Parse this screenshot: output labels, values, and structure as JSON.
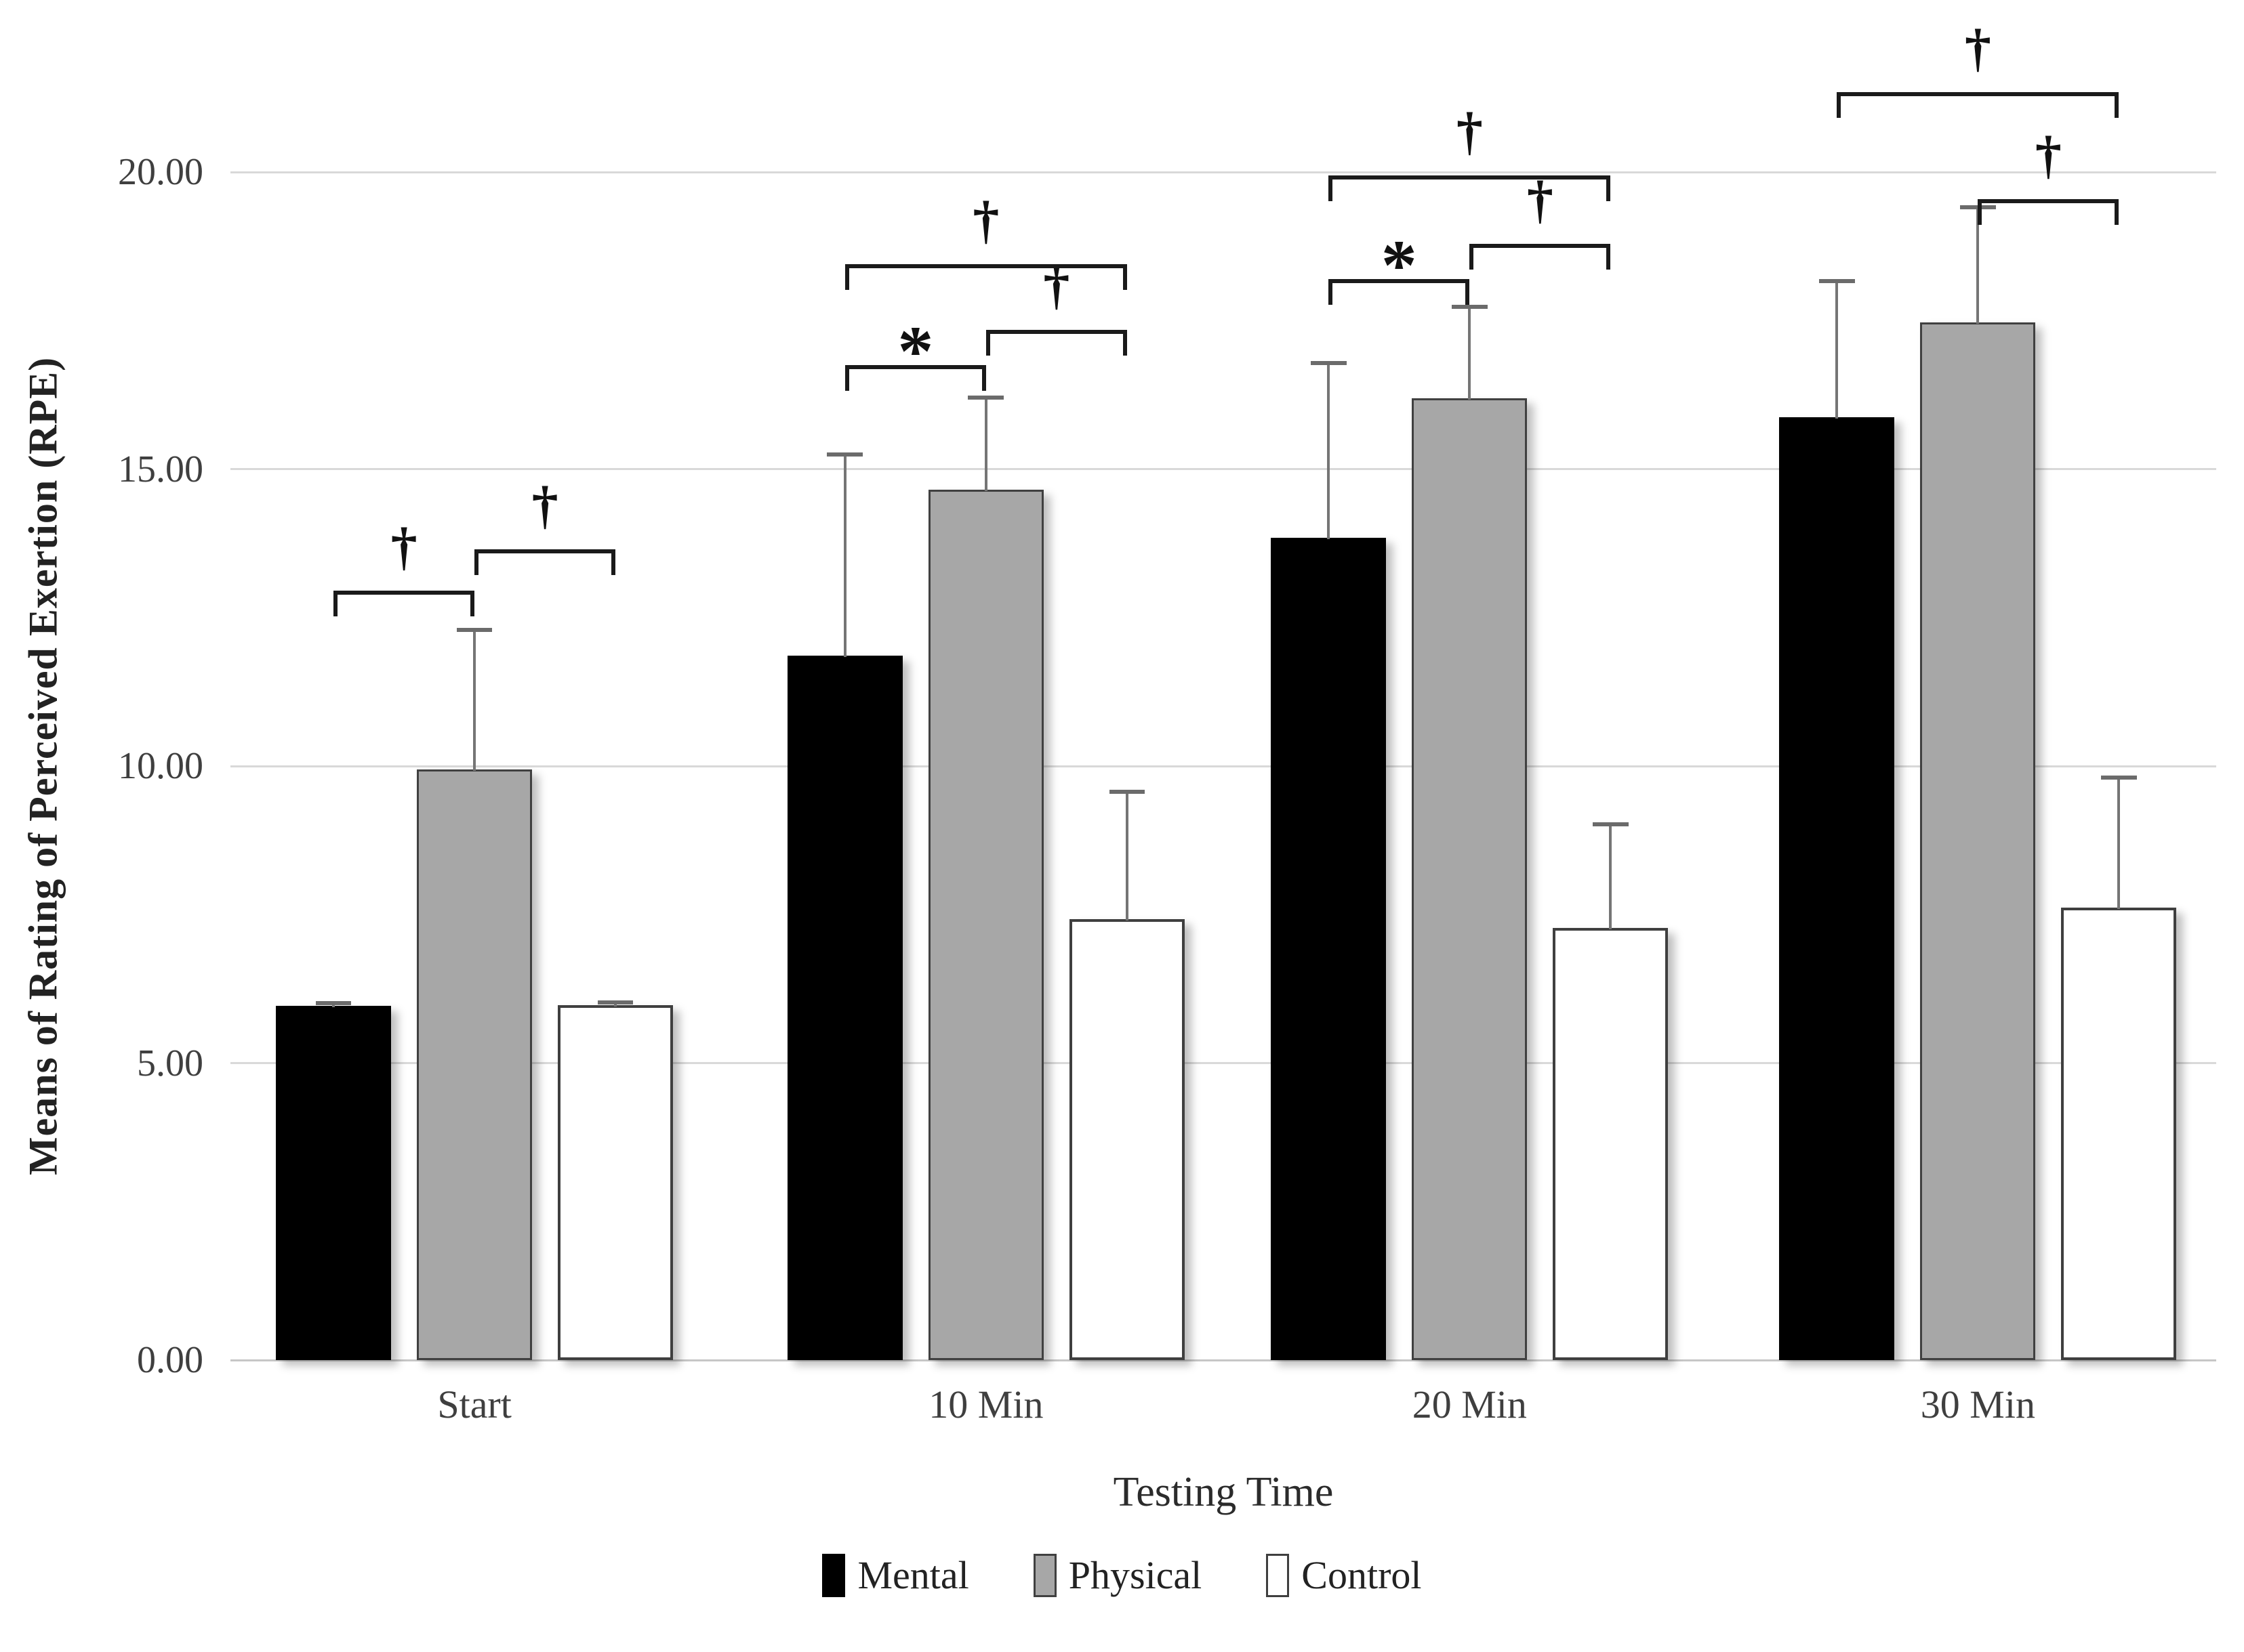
{
  "figure": {
    "background": "#ffffff"
  },
  "chart_data": {
    "type": "bar",
    "title": "",
    "xlabel": "Testing Time",
    "ylabel": "Means of Rating of Perceived Exertion (RPE)",
    "categories": [
      "Start",
      "10 Min",
      "20 Min",
      "30 Min"
    ],
    "series": [
      {
        "name": "Mental",
        "fill": "#000000",
        "border": "#000000",
        "border_width": 0,
        "values": [
          5.97,
          11.86,
          13.84,
          15.87
        ],
        "errors_up": [
          0.1,
          3.45,
          3.0,
          2.35
        ]
      },
      {
        "name": "Physical",
        "fill": "#a7a7a7",
        "border": "#404040",
        "border_width": 3,
        "values": [
          9.95,
          14.66,
          16.19,
          17.47
        ],
        "errors_up": [
          2.4,
          1.6,
          1.6,
          2.0
        ]
      },
      {
        "name": "Control",
        "fill": "#ffffff",
        "border": "#3f3f3f",
        "border_width": 4,
        "values": [
          5.98,
          7.42,
          7.28,
          7.62
        ],
        "errors_up": [
          0.1,
          2.2,
          1.8,
          2.25
        ]
      }
    ],
    "ylim": [
      0,
      22.9
    ],
    "yticks": [
      {
        "value": 0,
        "label": "0.00"
      },
      {
        "value": 5,
        "label": "5.00"
      },
      {
        "value": 10,
        "label": "10.00"
      },
      {
        "value": 15,
        "label": "15.00"
      },
      {
        "value": 20,
        "label": "20.00"
      }
    ],
    "grid": "horizontal",
    "legend_position": "bottom",
    "legend_labels": [
      "Mental",
      "Physical",
      "Control"
    ],
    "significance_brackets": [
      {
        "group": 0,
        "from": "Mental",
        "to": "Physical",
        "y": 12.95,
        "label": "†"
      },
      {
        "group": 0,
        "from": "Physical",
        "to": "Control",
        "y": 13.65,
        "label": "†"
      },
      {
        "group": 1,
        "from": "Mental",
        "to": "Physical",
        "y": 16.75,
        "label": "*"
      },
      {
        "group": 1,
        "from": "Physical",
        "to": "Control",
        "y": 17.35,
        "label": "†"
      },
      {
        "group": 1,
        "from": "Mental",
        "to": "Control",
        "y": 18.45,
        "label": "†"
      },
      {
        "group": 2,
        "from": "Mental",
        "to": "Physical",
        "y": 18.2,
        "label": "*"
      },
      {
        "group": 2,
        "from": "Physical",
        "to": "Control",
        "y": 18.8,
        "label": "†"
      },
      {
        "group": 2,
        "from": "Mental",
        "to": "Control",
        "y": 19.95,
        "label": "†"
      },
      {
        "group": 3,
        "from": "Physical",
        "to": "Control",
        "y": 19.55,
        "label": "†"
      },
      {
        "group": 3,
        "from": "Mental",
        "to": "Control",
        "y": 21.35,
        "label": "†"
      }
    ],
    "colors": {
      "gridline": "#d9d9d9",
      "baseline": "#c6c6c6",
      "error_bar": "#757575",
      "bracket": "#1a1a1a",
      "sig_text": "#111111",
      "tick_text": "#3f3f3f",
      "axis_title_text": "#222222"
    }
  }
}
